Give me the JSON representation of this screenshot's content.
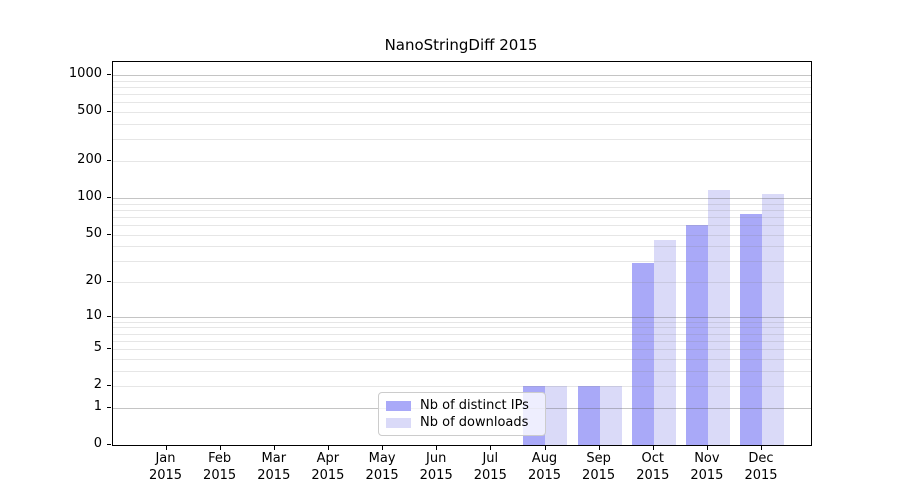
{
  "title": "NanoStringDiff 2015",
  "chart_data": {
    "type": "bar",
    "title": "NanoStringDiff 2015",
    "year_label": "2015",
    "categories": [
      "Jan",
      "Feb",
      "Mar",
      "Apr",
      "May",
      "Jun",
      "Jul",
      "Aug",
      "Sep",
      "Oct",
      "Nov",
      "Dec"
    ],
    "series": [
      {
        "name": "Nb of distinct IPs",
        "color": "#a9a9f8",
        "values": [
          0,
          0,
          0,
          0,
          0,
          0,
          0,
          2,
          2,
          29,
          60,
          74
        ]
      },
      {
        "name": "Nb of downloads",
        "color": "#dadaf8",
        "values": [
          0,
          0,
          0,
          0,
          0,
          0,
          0,
          2,
          2,
          45,
          117,
          108
        ]
      }
    ],
    "y_ticks": [
      0,
      1,
      2,
      5,
      10,
      20,
      50,
      100,
      200,
      500,
      1000
    ],
    "y_major_gridlines": [
      1,
      10,
      100,
      1000
    ],
    "y_scale": "log10(1+x)",
    "ylim": [
      0,
      1300
    ],
    "grid": "horizontal, major and minor",
    "legend_position": "lower center",
    "xlabel": "",
    "ylabel": ""
  },
  "colors": {
    "bar_distinct_ips": "#a9a9f8",
    "bar_downloads": "#dadaf8",
    "spine": "#000000",
    "major_grid": "#c4c4c4",
    "minor_grid": "#e5e5e5",
    "legend_border": "#cccccc",
    "background": "#ffffff"
  }
}
